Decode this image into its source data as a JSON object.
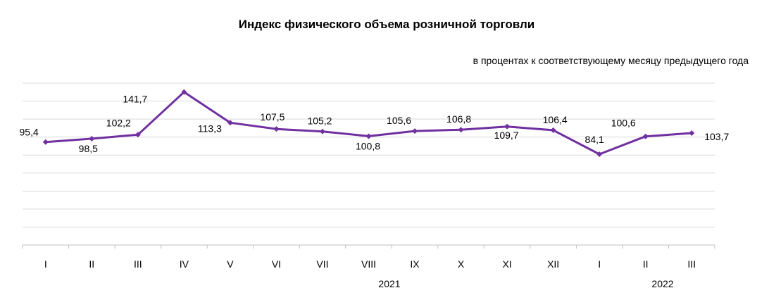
{
  "chart_data": {
    "type": "line",
    "title": "Индекс физического объема розничной торговли",
    "subtitle": "в процентах к соответствующему месяцу предыдущего года",
    "xlabel": "",
    "ylabel": "",
    "categories": [
      "I",
      "II",
      "III",
      "IV",
      "V",
      "VI",
      "VII",
      "VIII",
      "IX",
      "X",
      "XI",
      "XII",
      "I",
      "II",
      "III"
    ],
    "year_labels": [
      "2021",
      "2022"
    ],
    "series": [
      {
        "values": [
          95.4,
          98.5,
          102.2,
          141.7,
          113.3,
          107.5,
          105.2,
          100.8,
          105.6,
          106.8,
          109.7,
          106.4,
          84.1,
          100.6,
          103.7
        ],
        "labels": [
          "95,4",
          "98,5",
          "102,2",
          "141,7",
          "113,3",
          "107,5",
          "105,2",
          "100,8",
          "105,6",
          "106,8",
          "109,7",
          "106,4",
          "84,1",
          "100,6",
          "103,7"
        ]
      }
    ],
    "ylim": [
      0,
      150
    ],
    "grid": true,
    "line_color": "#7030A0"
  }
}
